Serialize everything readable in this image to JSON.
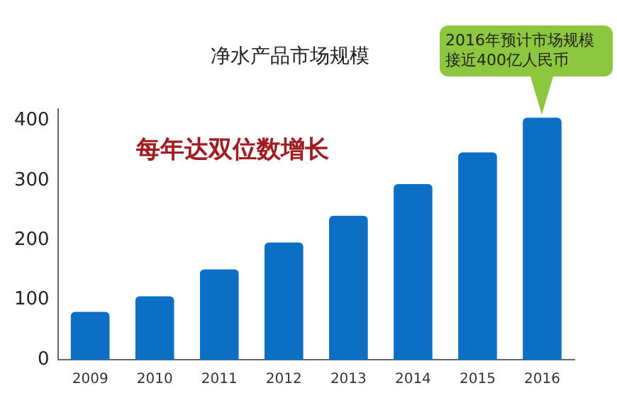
{
  "chart_data": {
    "type": "bar",
    "title": "净水产品市场规模",
    "categories": [
      "2009",
      "2010",
      "2011",
      "2012",
      "2013",
      "2014",
      "2015",
      "2016"
    ],
    "values": [
      80,
      106,
      151,
      196,
      241,
      294,
      347,
      405
    ],
    "color": "#0b6fc4",
    "ylim": [
      0,
      420
    ],
    "yticks": [
      0,
      100,
      200,
      300,
      400
    ],
    "grid": false,
    "annotations": [
      "每年达双位数增长",
      "2016年预计市场规模接近400亿人民币"
    ]
  }
}
